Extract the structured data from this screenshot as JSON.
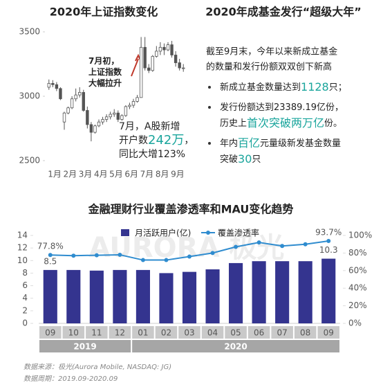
{
  "chart_data": [
    {
      "type": "candlestick",
      "title": "2020年上证指数变化",
      "color": "#555555",
      "ylim": [
        2500,
        3500
      ],
      "yticks": [
        2500,
        3000,
        3500
      ],
      "months": [
        {
          "label": "1月",
          "candles": [
            {
              "open": 3070,
              "high": 3130,
              "low": 3050,
              "close": 3100
            },
            {
              "open": 3100,
              "high": 3125,
              "low": 3070,
              "close": 3090
            },
            {
              "open": 3090,
              "high": 3110,
              "low": 3040,
              "close": 3060
            },
            {
              "open": 3060,
              "high": 3070,
              "low": 2970,
              "close": 2980
            }
          ]
        },
        {
          "label": "2月",
          "candles": [
            {
              "open": 2800,
              "high": 2880,
              "low": 2740,
              "close": 2870
            },
            {
              "open": 2870,
              "high": 2920,
              "low": 2860,
              "close": 2910
            },
            {
              "open": 2910,
              "high": 3000,
              "low": 2900,
              "close": 2980
            },
            {
              "open": 2980,
              "high": 3060,
              "low": 2960,
              "close": 3010
            }
          ]
        },
        {
          "label": "3月",
          "candles": [
            {
              "open": 3010,
              "high": 3070,
              "low": 2990,
              "close": 3030
            },
            {
              "open": 3030,
              "high": 3050,
              "low": 2880,
              "close": 2890
            },
            {
              "open": 2890,
              "high": 2920,
              "low": 2750,
              "close": 2780
            },
            {
              "open": 2780,
              "high": 2800,
              "low": 2650,
              "close": 2720
            }
          ]
        },
        {
          "label": "4月",
          "candles": [
            {
              "open": 2720,
              "high": 2780,
              "low": 2710,
              "close": 2770
            },
            {
              "open": 2770,
              "high": 2820,
              "low": 2760,
              "close": 2800
            },
            {
              "open": 2800,
              "high": 2840,
              "low": 2780,
              "close": 2820
            },
            {
              "open": 2820,
              "high": 2860,
              "low": 2800,
              "close": 2840
            }
          ]
        },
        {
          "label": "5月",
          "candles": [
            {
              "open": 2840,
              "high": 2880,
              "low": 2820,
              "close": 2860
            },
            {
              "open": 2860,
              "high": 2900,
              "low": 2840,
              "close": 2870
            },
            {
              "open": 2870,
              "high": 2890,
              "low": 2800,
              "close": 2820
            },
            {
              "open": 2820,
              "high": 2860,
              "low": 2810,
              "close": 2850
            }
          ]
        },
        {
          "label": "6月",
          "candles": [
            {
              "open": 2850,
              "high": 2930,
              "low": 2840,
              "close": 2920
            },
            {
              "open": 2920,
              "high": 2950,
              "low": 2900,
              "close": 2930
            },
            {
              "open": 2930,
              "high": 2980,
              "low": 2910,
              "close": 2960
            },
            {
              "open": 2960,
              "high": 3010,
              "low": 2950,
              "close": 2990
            }
          ]
        },
        {
          "label": "7月",
          "candles": [
            {
              "open": 2990,
              "high": 3460,
              "low": 2990,
              "close": 3380
            },
            {
              "open": 3380,
              "high": 3460,
              "low": 3200,
              "close": 3220
            },
            {
              "open": 3220,
              "high": 3250,
              "low": 3180,
              "close": 3200
            },
            {
              "open": 3200,
              "high": 3320,
              "low": 3190,
              "close": 3310
            }
          ]
        },
        {
          "label": "8月",
          "candles": [
            {
              "open": 3310,
              "high": 3390,
              "low": 3300,
              "close": 3350
            },
            {
              "open": 3350,
              "high": 3420,
              "low": 3320,
              "close": 3380
            },
            {
              "open": 3380,
              "high": 3410,
              "low": 3320,
              "close": 3360
            },
            {
              "open": 3360,
              "high": 3420,
              "low": 3350,
              "close": 3400
            }
          ]
        },
        {
          "label": "9月",
          "candles": [
            {
              "open": 3400,
              "high": 3430,
              "low": 3300,
              "close": 3320
            },
            {
              "open": 3320,
              "high": 3350,
              "low": 3230,
              "close": 3260
            },
            {
              "open": 3260,
              "high": 3290,
              "low": 3200,
              "close": 3220
            },
            {
              "open": 3220,
              "high": 3250,
              "low": 3190,
              "close": 3220
            }
          ]
        }
      ],
      "annotations": [
        {
          "lines": [
            [
              {
                "text": "7月初，",
                "em": false
              }
            ],
            [
              {
                "text": "上证指数",
                "em": false
              }
            ],
            [
              {
                "text": "大幅拉升",
                "em": false
              }
            ]
          ]
        },
        {
          "lines": [
            [
              {
                "text": "7月，A股新增",
                "em": false
              }
            ],
            [
              {
                "text": "开户数",
                "em": false
              },
              {
                "text": "242万",
                "em": true
              },
              {
                "text": "，",
                "em": false
              }
            ],
            [
              {
                "text": "同比大增123%",
                "em": false
              }
            ]
          ]
        }
      ]
    },
    {
      "type": "bar-line",
      "title": "金融理财行业覆盖渗透率和MAU变化趋势",
      "watermark": "AURORA 极光",
      "groups": [
        {
          "name": "2019",
          "categories": [
            "09",
            "10",
            "11",
            "12"
          ]
        },
        {
          "name": "2020",
          "categories": [
            "01",
            "02",
            "03",
            "04",
            "05",
            "06",
            "07",
            "08",
            "09"
          ]
        }
      ],
      "ylim": [
        0,
        14
      ],
      "yticks": [
        0,
        2,
        4,
        6,
        8,
        10,
        12,
        14
      ],
      "y2lim": [
        0,
        100
      ],
      "y2ticks": [
        {
          "value": 0,
          "label": "0%"
        },
        {
          "value": 20,
          "label": "20%"
        },
        {
          "value": 40,
          "label": "40%"
        },
        {
          "value": 60,
          "label": "60%"
        },
        {
          "value": 80,
          "label": "80%"
        },
        {
          "value": 100,
          "label": "100%"
        }
      ],
      "series": [
        {
          "name": "月活跃用户(亿)",
          "type": "bar",
          "color": "#34348f",
          "values": [
            8.5,
            8.5,
            8.4,
            8.5,
            8.5,
            8.0,
            8.2,
            8.6,
            9.6,
            9.9,
            9.9,
            9.9,
            10.3
          ],
          "value_labels": [
            "8.5",
            null,
            null,
            null,
            null,
            null,
            null,
            null,
            null,
            null,
            null,
            null,
            "10.3"
          ]
        },
        {
          "name": "覆盖渗透率",
          "type": "line",
          "axis": "y2",
          "color": "#2f8ccf",
          "values": [
            77.8,
            77,
            77.5,
            78,
            72,
            72,
            76,
            80,
            87,
            92,
            88,
            90,
            93.7
          ],
          "value_labels": [
            "77.8%",
            null,
            null,
            null,
            null,
            null,
            null,
            null,
            null,
            null,
            null,
            null,
            "93.7%"
          ]
        }
      ],
      "notes": [
        "数据来源：极光(Aurora Mobile, NASDAQ: JG)",
        "数据周期：2019.09-2020.09"
      ]
    }
  ],
  "panel": {
    "title": "2020年成基金发行“超级大年”",
    "intro": [
      "截至9月末，今年以来新成立基金",
      "的数量和发行份额双双创下新高"
    ],
    "bullets": [
      {
        "lines": [
          [
            {
              "text": "新成立基金数量达到",
              "em": false
            },
            {
              "text": "1128",
              "em": true
            },
            {
              "text": "只；",
              "em": false
            }
          ]
        ]
      },
      {
        "lines": [
          [
            {
              "text": "发行份额达到23389.19亿份，",
              "em": false
            }
          ],
          [
            {
              "text": "历史上",
              "em": false
            },
            {
              "text": "首次突破两万亿",
              "em": true
            },
            {
              "text": "份。",
              "em": false
            }
          ]
        ]
      },
      {
        "lines": [
          [
            {
              "text": "年内",
              "em": false
            },
            {
              "text": "百亿",
              "em": true
            },
            {
              "text": "元量级新发基金数量",
              "em": false
            }
          ],
          [
            {
              "text": "突破",
              "em": false
            },
            {
              "text": "30",
              "em": true
            },
            {
              "text": "只",
              "em": false
            }
          ]
        ]
      }
    ]
  }
}
